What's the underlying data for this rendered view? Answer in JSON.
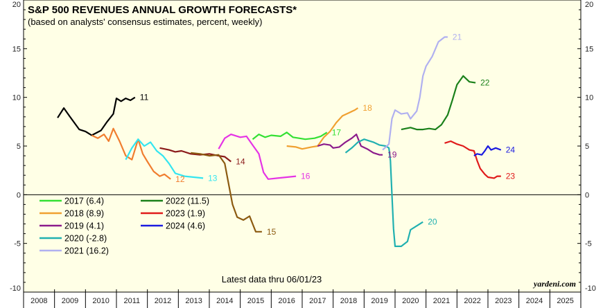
{
  "chart_data": {
    "type": "line",
    "title": "S&P 500 REVENUES ANNUAL GROWTH FORECASTS*",
    "subtitle": "(based on analysts' consensus estimates, percent, weekly)",
    "note": "Latest data thru 06/01/23",
    "source": "yardeni.com",
    "xlim": [
      2008,
      2026
    ],
    "ylim": [
      -10,
      20
    ],
    "yticks": [
      -10,
      -5,
      0,
      5,
      10,
      15,
      20
    ],
    "xtick_labels": [
      "2008",
      "2009",
      "2010",
      "2011",
      "2012",
      "2013",
      "2014",
      "2015",
      "2016",
      "2017",
      "2018",
      "2019",
      "2020",
      "2021",
      "2022",
      "2023",
      "2024",
      "2025"
    ],
    "grid": false,
    "legend_position": "bottom-left",
    "colors": {
      "plot_background": "#ffffe6",
      "zero_line": "#000000",
      "s2011": "#000000",
      "s2012": "#f07d2e",
      "s2013": "#33e5f0",
      "s2014": "#8b1a1a",
      "s2015": "#8b5a10",
      "s2016": "#e533e5",
      "s2017": "#33e033",
      "s2018": "#f0a030",
      "s2019": "#8b1a8b",
      "s2020": "#20b0b0",
      "s2021": "#b0b0f0",
      "s2022": "#1a801a",
      "s2023": "#e01a1a",
      "s2024": "#1a1ae0"
    },
    "legend": [
      {
        "label": "2017 (6.4)",
        "color": "#33e033"
      },
      {
        "label": "2018 (8.9)",
        "color": "#f0a030"
      },
      {
        "label": "2019 (4.1)",
        "color": "#8b1a8b"
      },
      {
        "label": "2020 (-2.8)",
        "color": "#20b0b0"
      },
      {
        "label": "2021 (16.2)",
        "color": "#b0b0f0"
      },
      {
        "label": "2022 (11.5)",
        "color": "#1a801a"
      },
      {
        "label": "2023 (1.9)",
        "color": "#e01a1a"
      },
      {
        "label": "2024 (4.6)",
        "color": "#1a1ae0"
      }
    ],
    "series": [
      {
        "label": "11",
        "color": "#000000",
        "points": [
          [
            2009.1,
            7.9
          ],
          [
            2009.3,
            8.9
          ],
          [
            2009.5,
            8.0
          ],
          [
            2009.8,
            6.7
          ],
          [
            2010.0,
            6.5
          ],
          [
            2010.2,
            6.1
          ],
          [
            2010.5,
            6.6
          ],
          [
            2010.7,
            7.5
          ],
          [
            2010.9,
            8.3
          ],
          [
            2011.0,
            9.9
          ],
          [
            2011.15,
            9.6
          ],
          [
            2011.3,
            9.9
          ],
          [
            2011.45,
            9.7
          ],
          [
            2011.6,
            10.0
          ]
        ]
      },
      {
        "label": "12",
        "color": "#f07d2e",
        "points": [
          [
            2010.2,
            6.1
          ],
          [
            2010.4,
            5.8
          ],
          [
            2010.6,
            6.2
          ],
          [
            2010.75,
            5.5
          ],
          [
            2010.9,
            6.8
          ],
          [
            2011.1,
            5.5
          ],
          [
            2011.3,
            4.0
          ],
          [
            2011.5,
            3.6
          ],
          [
            2011.7,
            5.7
          ],
          [
            2011.85,
            4.2
          ],
          [
            2012.0,
            3.4
          ],
          [
            2012.2,
            2.4
          ],
          [
            2012.4,
            1.9
          ],
          [
            2012.55,
            2.1
          ],
          [
            2012.75,
            1.6
          ]
        ]
      },
      {
        "label": "13",
        "color": "#33e5f0",
        "points": [
          [
            2011.3,
            3.6
          ],
          [
            2011.5,
            4.8
          ],
          [
            2011.7,
            5.7
          ],
          [
            2011.9,
            5.0
          ],
          [
            2012.1,
            5.4
          ],
          [
            2012.3,
            4.5
          ],
          [
            2012.5,
            4.0
          ],
          [
            2012.7,
            3.2
          ],
          [
            2012.9,
            2.2
          ],
          [
            2013.2,
            1.9
          ],
          [
            2013.5,
            1.8
          ],
          [
            2013.8,
            1.7
          ]
        ]
      },
      {
        "label": "14",
        "color": "#8b1a1a",
        "points": [
          [
            2012.4,
            4.8
          ],
          [
            2012.7,
            4.6
          ],
          [
            2012.9,
            4.4
          ],
          [
            2013.1,
            4.5
          ],
          [
            2013.4,
            4.2
          ],
          [
            2013.7,
            4.1
          ],
          [
            2014.0,
            4.2
          ],
          [
            2014.3,
            4.0
          ],
          [
            2014.5,
            3.9
          ],
          [
            2014.7,
            3.4
          ]
        ]
      },
      {
        "label": "15",
        "color": "#8b5a10",
        "points": [
          [
            2013.4,
            4.3
          ],
          [
            2013.7,
            4.2
          ],
          [
            2014.0,
            4.0
          ],
          [
            2014.3,
            4.1
          ],
          [
            2014.5,
            3.2
          ],
          [
            2014.6,
            1.5
          ],
          [
            2014.75,
            -1.0
          ],
          [
            2014.9,
            -2.3
          ],
          [
            2015.1,
            -2.6
          ],
          [
            2015.3,
            -2.2
          ],
          [
            2015.4,
            -3.0
          ],
          [
            2015.5,
            -3.8
          ],
          [
            2015.7,
            -3.8
          ]
        ]
      },
      {
        "label": "16",
        "color": "#e533e5",
        "points": [
          [
            2014.3,
            4.7
          ],
          [
            2014.5,
            5.8
          ],
          [
            2014.7,
            6.2
          ],
          [
            2015.0,
            5.9
          ],
          [
            2015.2,
            6.0
          ],
          [
            2015.4,
            5.1
          ],
          [
            2015.6,
            4.2
          ],
          [
            2015.75,
            2.3
          ],
          [
            2015.9,
            1.6
          ],
          [
            2016.2,
            1.7
          ],
          [
            2016.5,
            1.8
          ],
          [
            2016.8,
            1.9
          ]
        ]
      },
      {
        "label": "17",
        "color": "#33e033",
        "points": [
          [
            2015.4,
            5.7
          ],
          [
            2015.6,
            6.2
          ],
          [
            2015.8,
            5.9
          ],
          [
            2016.0,
            6.1
          ],
          [
            2016.3,
            6.0
          ],
          [
            2016.5,
            6.4
          ],
          [
            2016.7,
            5.9
          ],
          [
            2016.9,
            5.8
          ],
          [
            2017.1,
            5.7
          ],
          [
            2017.4,
            5.8
          ],
          [
            2017.6,
            6.0
          ],
          [
            2017.8,
            6.4
          ]
        ]
      },
      {
        "label": "18",
        "color": "#f0a030",
        "points": [
          [
            2016.5,
            5.0
          ],
          [
            2016.8,
            4.9
          ],
          [
            2017.0,
            4.7
          ],
          [
            2017.3,
            4.9
          ],
          [
            2017.5,
            5.0
          ],
          [
            2017.7,
            5.9
          ],
          [
            2017.9,
            6.5
          ],
          [
            2018.1,
            7.4
          ],
          [
            2018.3,
            8.1
          ],
          [
            2018.5,
            8.4
          ],
          [
            2018.7,
            8.7
          ],
          [
            2018.8,
            8.9
          ]
        ]
      },
      {
        "label": "19",
        "color": "#8b1a8b",
        "points": [
          [
            2017.5,
            5.0
          ],
          [
            2017.7,
            5.2
          ],
          [
            2017.9,
            5.1
          ],
          [
            2018.0,
            4.8
          ],
          [
            2018.2,
            4.9
          ],
          [
            2018.4,
            5.4
          ],
          [
            2018.6,
            5.8
          ],
          [
            2018.75,
            6.2
          ],
          [
            2018.9,
            5.0
          ],
          [
            2019.1,
            4.7
          ],
          [
            2019.3,
            4.3
          ],
          [
            2019.5,
            4.1
          ],
          [
            2019.6,
            4.1
          ]
        ]
      },
      {
        "label": "20",
        "color": "#20b0b0",
        "points": [
          [
            2018.4,
            4.3
          ],
          [
            2018.6,
            4.8
          ],
          [
            2018.8,
            5.4
          ],
          [
            2019.0,
            5.7
          ],
          [
            2019.3,
            5.4
          ],
          [
            2019.5,
            5.1
          ],
          [
            2019.7,
            5.0
          ],
          [
            2019.8,
            4.8
          ],
          [
            2019.85,
            3.5
          ],
          [
            2019.9,
            0.0
          ],
          [
            2019.95,
            -3.5
          ],
          [
            2020.0,
            -5.3
          ],
          [
            2020.2,
            -5.3
          ],
          [
            2020.4,
            -4.8
          ],
          [
            2020.5,
            -3.6
          ],
          [
            2020.7,
            -3.2
          ],
          [
            2020.9,
            -2.8
          ]
        ]
      },
      {
        "label": "21",
        "color": "#b0b0f0",
        "points": [
          [
            2019.6,
            4.6
          ],
          [
            2019.8,
            5.2
          ],
          [
            2019.9,
            7.8
          ],
          [
            2020.0,
            8.7
          ],
          [
            2020.2,
            8.3
          ],
          [
            2020.4,
            8.4
          ],
          [
            2020.5,
            7.8
          ],
          [
            2020.7,
            8.6
          ],
          [
            2020.8,
            10.0
          ],
          [
            2020.9,
            12.2
          ],
          [
            2021.0,
            13.2
          ],
          [
            2021.2,
            14.2
          ],
          [
            2021.4,
            15.7
          ],
          [
            2021.6,
            16.2
          ],
          [
            2021.7,
            16.2
          ]
        ]
      },
      {
        "label": "22",
        "color": "#1a801a",
        "points": [
          [
            2020.2,
            6.7
          ],
          [
            2020.5,
            6.9
          ],
          [
            2020.7,
            6.7
          ],
          [
            2020.9,
            6.7
          ],
          [
            2021.1,
            6.8
          ],
          [
            2021.3,
            6.7
          ],
          [
            2021.5,
            7.2
          ],
          [
            2021.7,
            8.2
          ],
          [
            2021.85,
            9.7
          ],
          [
            2022.0,
            11.3
          ],
          [
            2022.2,
            12.2
          ],
          [
            2022.4,
            11.6
          ],
          [
            2022.6,
            11.5
          ]
        ]
      },
      {
        "label": "23",
        "color": "#e01a1a",
        "points": [
          [
            2021.6,
            5.3
          ],
          [
            2021.8,
            5.5
          ],
          [
            2022.0,
            5.2
          ],
          [
            2022.2,
            5.0
          ],
          [
            2022.4,
            4.6
          ],
          [
            2022.55,
            4.5
          ],
          [
            2022.65,
            3.5
          ],
          [
            2022.75,
            2.7
          ],
          [
            2022.9,
            2.1
          ],
          [
            2023.0,
            1.8
          ],
          [
            2023.2,
            1.7
          ],
          [
            2023.3,
            1.9
          ],
          [
            2023.42,
            1.9
          ]
        ]
      },
      {
        "label": "24",
        "color": "#1a1ae0",
        "points": [
          [
            2022.55,
            4.0
          ],
          [
            2022.65,
            4.2
          ],
          [
            2022.8,
            4.1
          ],
          [
            2022.9,
            4.5
          ],
          [
            2023.0,
            5.0
          ],
          [
            2023.1,
            4.6
          ],
          [
            2023.25,
            4.8
          ],
          [
            2023.42,
            4.6
          ]
        ]
      }
    ]
  }
}
